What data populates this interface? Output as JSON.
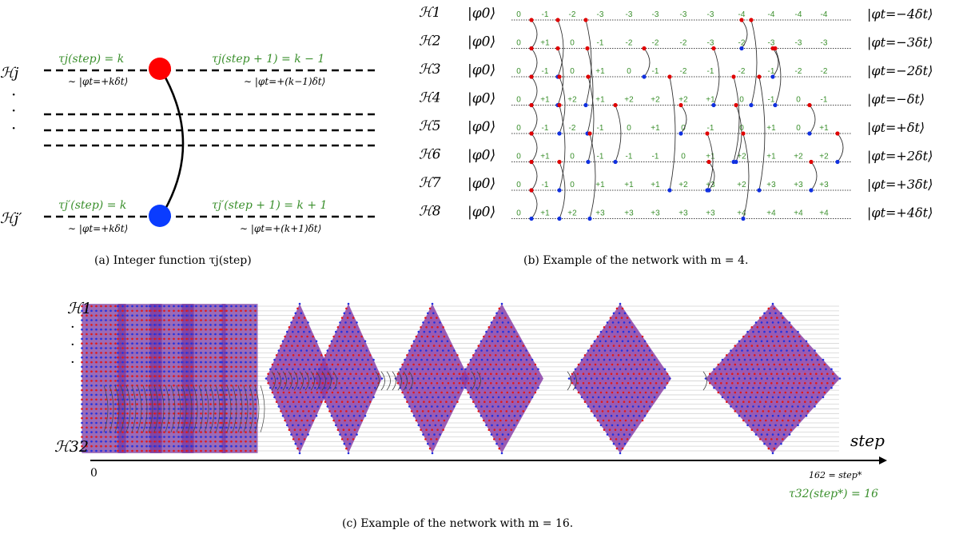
{
  "panel_a": {
    "caption": "(a) Integer function τj(step)",
    "row_top": "ℋj",
    "row_bottom": "ℋj′",
    "dots": "⋮",
    "top_left_tau": "τj(step) = k",
    "top_left_state": "∼ |φt=+kδt⟩",
    "top_right_tau": "τj(step + 1) = k − 1",
    "top_right_state": "∼ |φt=+(k−1)δt⟩",
    "bot_left_tau": "τj′(step) = k",
    "bot_left_state": "∼ |φt=+kδt⟩",
    "bot_right_tau": "τj′(step + 1) = k + 1",
    "bot_right_state": "∼ |φt=+(k+1)δt⟩",
    "colors": {
      "red": "#ff0000",
      "blue": "#0a3cff",
      "green": "#3a8f2c"
    }
  },
  "panel_b": {
    "caption": "(b) Example of the network with m = 4.",
    "initial_state": "|φ0⟩",
    "rows": [
      {
        "label": "ℋ1",
        "final": "|φt=−4δt⟩",
        "values": [
          "0",
          "-1",
          "-2",
          "-3",
          "-3",
          "-3",
          "-3",
          "-3",
          "-4",
          "-4",
          "-4",
          "-4"
        ]
      },
      {
        "label": "ℋ2",
        "final": "|φt=−3δt⟩",
        "values": [
          "0",
          "+1",
          "0",
          "-1",
          "-2",
          "-2",
          "-2",
          "-3",
          "-2",
          "-3",
          "-3",
          "-3"
        ]
      },
      {
        "label": "ℋ3",
        "final": "|φt=−2δt⟩",
        "values": [
          "0",
          "-1",
          "0",
          "+1",
          "0",
          "-1",
          "-2",
          "-1",
          "-2",
          "-1",
          "-2",
          "-2"
        ]
      },
      {
        "label": "ℋ4",
        "final": "|φt=−δt⟩",
        "values": [
          "0",
          "+1",
          "+2",
          "+1",
          "+2",
          "+2",
          "+2",
          "+1",
          "0",
          "-1",
          "0",
          "-1"
        ]
      },
      {
        "label": "ℋ5",
        "final": "|φt=+δt⟩",
        "values": [
          "0",
          "-1",
          "-2",
          "-1",
          "0",
          "+1",
          "0",
          "-1",
          "0",
          "+1",
          "0",
          "+1"
        ]
      },
      {
        "label": "ℋ6",
        "final": "|φt=+2δt⟩",
        "values": [
          "0",
          "+1",
          "0",
          "-1",
          "-1",
          "-1",
          "0",
          "+1",
          "+2",
          "+1",
          "+2",
          "+2"
        ]
      },
      {
        "label": "ℋ7",
        "final": "|φt=+3δt⟩",
        "values": [
          "0",
          "-1",
          "0",
          "+1",
          "+1",
          "+1",
          "+2",
          "+3",
          "+2",
          "+3",
          "+3",
          "+3"
        ]
      },
      {
        "label": "ℋ8",
        "final": "|φt=+4δt⟩",
        "values": [
          "0",
          "+1",
          "+2",
          "+3",
          "+3",
          "+3",
          "+3",
          "+3",
          "+4",
          "+4",
          "+4",
          "+4"
        ]
      }
    ]
  },
  "panel_c": {
    "caption": "(c) Example of the network with m = 16.",
    "row_top": "ℋ1",
    "row_bottom": "ℋ32",
    "dots": "⋮",
    "axis_label": "step",
    "x_start": "0",
    "x_end": "162 = step*",
    "tau_final": "τ32(step*) = 16"
  }
}
